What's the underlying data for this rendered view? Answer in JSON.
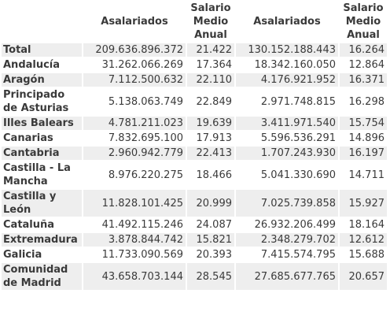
{
  "headers": {
    "asalariados_1": "Asalariados",
    "salario_1": "Salario Medio Anual",
    "asalariados_2": "Asalariados",
    "salario_2": "Salario Medio Anual"
  },
  "rows": [
    {
      "region": "Total",
      "a1": "209.636.896.372",
      "s1": "21.422",
      "a2": "130.152.188.443",
      "s2": "16.264"
    },
    {
      "region": "Andalucía",
      "a1": "31.262.066.269",
      "s1": "17.364",
      "a2": "18.342.160.050",
      "s2": "12.864"
    },
    {
      "region": "Aragón",
      "a1": "7.112.500.632",
      "s1": "22.110",
      "a2": "4.176.921.952",
      "s2": "16.371"
    },
    {
      "region": "Principado de Asturias",
      "a1": "5.138.063.749",
      "s1": "22.849",
      "a2": "2.971.748.815",
      "s2": "16.298"
    },
    {
      "region": "Illes Balears",
      "a1": "4.781.211.023",
      "s1": "19.639",
      "a2": "3.411.971.540",
      "s2": "15.754"
    },
    {
      "region": "Canarias",
      "a1": "7.832.695.100",
      "s1": "17.913",
      "a2": "5.596.536.291",
      "s2": "14.896"
    },
    {
      "region": "Cantabria",
      "a1": "2.960.942.779",
      "s1": "22.413",
      "a2": "1.707.243.930",
      "s2": "16.197"
    },
    {
      "region": "Castilla - La Mancha",
      "a1": "8.976.220.275",
      "s1": "18.466",
      "a2": "5.041.330.690",
      "s2": "14.711"
    },
    {
      "region": "Castilla y León",
      "a1": "11.828.101.425",
      "s1": "20.999",
      "a2": "7.025.739.858",
      "s2": "15.927"
    },
    {
      "region": "Cataluña",
      "a1": "41.492.115.246",
      "s1": "24.087",
      "a2": "26.932.206.499",
      "s2": "18.164"
    },
    {
      "region": "Extremadura",
      "a1": "3.878.844.742",
      "s1": "15.821",
      "a2": "2.348.279.702",
      "s2": "12.612"
    },
    {
      "region": "Galicia",
      "a1": "11.733.090.569",
      "s1": "20.393",
      "a2": "7.415.574.795",
      "s2": "15.688"
    },
    {
      "region": "Comunidad de Madrid",
      "a1": "43.658.703.144",
      "s1": "28.545",
      "a2": "27.685.677.765",
      "s2": "20.657"
    }
  ]
}
